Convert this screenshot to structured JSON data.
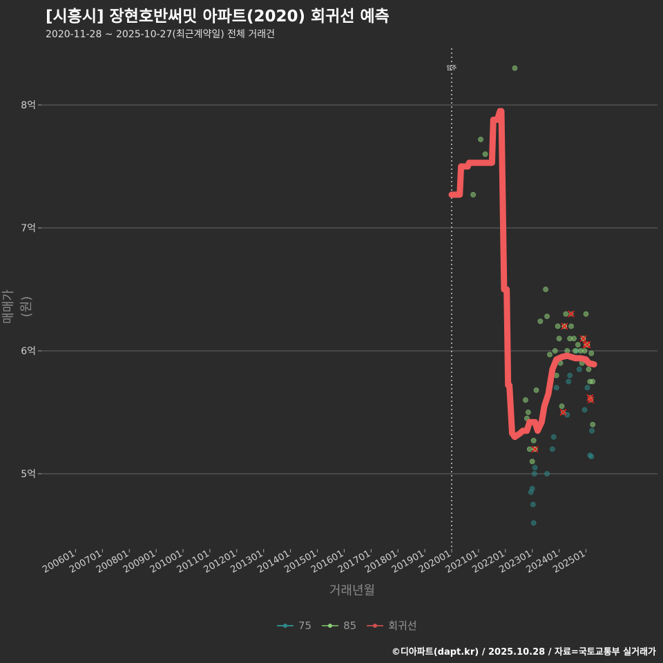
{
  "header": {
    "title": "[시흥시] 장현호반써밋 아파트(2020) 회귀선 예측",
    "subtitle": "2020-11-28 ~ 2025-10-27(최근계약일) 전체 거래건"
  },
  "axes": {
    "y_title": "매매가(원)",
    "x_title": "거래년월",
    "y_ticks": [
      {
        "label": "8억",
        "value": 8.0
      },
      {
        "label": "7억",
        "value": 7.0
      },
      {
        "label": "6억",
        "value": 6.0
      },
      {
        "label": "5억",
        "value": 5.0
      }
    ],
    "x_ticks": [
      "200601",
      "200701",
      "200801",
      "200901",
      "201001",
      "201101",
      "201201",
      "201301",
      "201401",
      "201501",
      "201601",
      "201701",
      "201801",
      "201901",
      "202001",
      "202101",
      "202201",
      "202301",
      "202401",
      "202501"
    ]
  },
  "annotation": {
    "label": "입주",
    "x": "202001"
  },
  "legend": {
    "items": [
      {
        "label": "75",
        "color": "#2f8a8a"
      },
      {
        "label": "85",
        "color": "#8fd17a"
      },
      {
        "label": "회귀선",
        "color": "#f05a5a"
      }
    ]
  },
  "caption": "©디아파트(dapt.kr) / 2025.10.28 / 자료=국토교통부 실거래가",
  "chart_data": {
    "type": "scatter",
    "title": "[시흥시] 장현호반써밋 아파트(2020) 회귀선 예측",
    "subtitle": "2020-11-28 ~ 2025-10-27(최근계약일) 전체 거래건",
    "xlabel": "거래년월",
    "ylabel": "매매가(원)",
    "ylim": [
      4.45,
      8.45
    ],
    "y_unit": "억",
    "grid": true,
    "legend_position": "bottom",
    "x_range": [
      "200601",
      "202512"
    ],
    "series": [
      {
        "name": "75",
        "color": "#2f8a8a",
        "points": [
          [
            2022.95,
            4.85
          ],
          [
            2023.0,
            4.88
          ],
          [
            2023.03,
            4.75
          ],
          [
            2023.05,
            4.6
          ],
          [
            2023.08,
            5.0
          ],
          [
            2023.1,
            5.05
          ],
          [
            2023.3,
            5.4
          ],
          [
            2023.55,
            5.0
          ],
          [
            2023.75,
            5.2
          ],
          [
            2023.8,
            5.3
          ],
          [
            2023.9,
            5.7
          ],
          [
            2024.3,
            5.48
          ],
          [
            2024.35,
            5.75
          ],
          [
            2024.4,
            5.8
          ],
          [
            2024.5,
            5.95
          ],
          [
            2024.65,
            6.0
          ],
          [
            2024.75,
            5.85
          ],
          [
            2024.95,
            5.52
          ],
          [
            2025.05,
            5.7
          ],
          [
            2025.15,
            5.15
          ],
          [
            2025.2,
            5.14
          ],
          [
            2025.22,
            5.35
          ]
        ]
      },
      {
        "name": "85",
        "color": "#8fd17a",
        "points": [
          [
            2020.8,
            7.27
          ],
          [
            2021.08,
            7.72
          ],
          [
            2021.25,
            7.6
          ],
          [
            2022.35,
            8.3
          ],
          [
            2022.75,
            5.6
          ],
          [
            2022.8,
            5.45
          ],
          [
            2022.85,
            5.5
          ],
          [
            2022.9,
            5.2
          ],
          [
            2023.0,
            5.1
          ],
          [
            2023.05,
            5.27
          ],
          [
            2023.1,
            5.2
          ],
          [
            2023.15,
            5.68
          ],
          [
            2023.3,
            6.24
          ],
          [
            2023.5,
            6.5
          ],
          [
            2023.55,
            6.28
          ],
          [
            2023.65,
            5.97
          ],
          [
            2023.85,
            6.0
          ],
          [
            2023.9,
            5.8
          ],
          [
            2023.95,
            6.2
          ],
          [
            2024.0,
            6.1
          ],
          [
            2024.05,
            5.9
          ],
          [
            2024.1,
            5.55
          ],
          [
            2024.2,
            6.2
          ],
          [
            2024.25,
            6.3
          ],
          [
            2024.3,
            6.0
          ],
          [
            2024.4,
            6.1
          ],
          [
            2024.45,
            6.2
          ],
          [
            2024.55,
            6.1
          ],
          [
            2024.6,
            6.0
          ],
          [
            2024.7,
            6.05
          ],
          [
            2024.8,
            6.0
          ],
          [
            2024.85,
            5.9
          ],
          [
            2024.9,
            6.1
          ],
          [
            2024.95,
            6.0
          ],
          [
            2025.0,
            6.3
          ],
          [
            2025.05,
            6.05
          ],
          [
            2025.1,
            5.85
          ],
          [
            2025.15,
            5.75
          ],
          [
            2025.2,
            5.98
          ],
          [
            2025.25,
            5.75
          ],
          [
            2025.25,
            5.4
          ]
        ]
      }
    ],
    "outliers_marked": [
      [
        2023.1,
        5.2
      ],
      [
        2024.15,
        5.5
      ],
      [
        2024.2,
        6.2
      ],
      [
        2024.45,
        6.3
      ],
      [
        2024.9,
        6.1
      ],
      [
        2025.0,
        6.05
      ],
      [
        2025.05,
        6.05
      ],
      [
        2025.15,
        5.62
      ],
      [
        2025.18,
        5.6
      ]
    ],
    "regression_line": {
      "name": "회귀선",
      "color": "#f05a5a",
      "points": [
        [
          2020.0,
          7.27
        ],
        [
          2020.3,
          7.27
        ],
        [
          2020.35,
          7.5
        ],
        [
          2020.6,
          7.5
        ],
        [
          2020.65,
          7.53
        ],
        [
          2021.0,
          7.53
        ],
        [
          2021.5,
          7.53
        ],
        [
          2021.55,
          7.88
        ],
        [
          2021.7,
          7.88
        ],
        [
          2021.8,
          7.95
        ],
        [
          2021.85,
          7.95
        ],
        [
          2021.95,
          6.5
        ],
        [
          2022.05,
          6.5
        ],
        [
          2022.1,
          5.72
        ],
        [
          2022.15,
          5.72
        ],
        [
          2022.25,
          5.33
        ],
        [
          2022.35,
          5.3
        ],
        [
          2022.55,
          5.33
        ],
        [
          2022.65,
          5.35
        ],
        [
          2022.8,
          5.35
        ],
        [
          2022.9,
          5.42
        ],
        [
          2023.1,
          5.42
        ],
        [
          2023.2,
          5.35
        ],
        [
          2023.35,
          5.42
        ],
        [
          2023.45,
          5.55
        ],
        [
          2023.6,
          5.65
        ],
        [
          2023.75,
          5.85
        ],
        [
          2023.9,
          5.93
        ],
        [
          2024.1,
          5.95
        ],
        [
          2024.3,
          5.96
        ],
        [
          2024.6,
          5.94
        ],
        [
          2024.8,
          5.94
        ],
        [
          2025.0,
          5.93
        ],
        [
          2025.1,
          5.9
        ],
        [
          2025.3,
          5.89
        ]
      ]
    }
  }
}
